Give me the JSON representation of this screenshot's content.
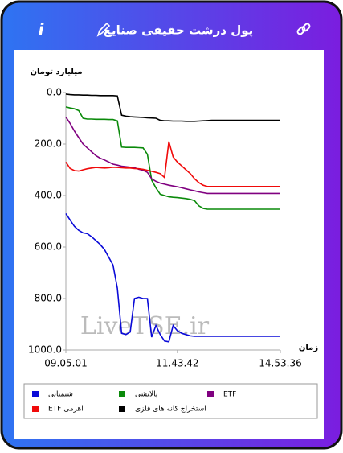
{
  "header": {
    "title": "پول درشت حقیقی صنایع",
    "info": "i"
  },
  "chart_data": {
    "type": "line",
    "y_label": "میلیارد تومان",
    "x_label": "زمان",
    "watermark": "LiveTSE.ir",
    "x": [
      0,
      1,
      2,
      3,
      4,
      5,
      6,
      7,
      8,
      9,
      10,
      11,
      12,
      13,
      14,
      15,
      16,
      17,
      18,
      19,
      20,
      21,
      22,
      23,
      24,
      25,
      26,
      27,
      28,
      29,
      30,
      31,
      32,
      33,
      34,
      35,
      36,
      37,
      38,
      39,
      40,
      41,
      42,
      43,
      44,
      45,
      46,
      47,
      48,
      49,
      50
    ],
    "xlim": [
      0,
      50
    ],
    "xticks": [
      {
        "value": 0,
        "label": "09.05.01"
      },
      {
        "value": 26,
        "label": "11.43.42"
      },
      {
        "value": 50,
        "label": "14.53.36"
      }
    ],
    "ylim": [
      1000,
      0
    ],
    "yticks": [
      {
        "value": 0,
        "label": "0.0"
      },
      {
        "value": 200,
        "label": "200.0"
      },
      {
        "value": 400,
        "label": "400.0"
      },
      {
        "value": 600,
        "label": "600.0"
      },
      {
        "value": 800,
        "label": "800.0"
      },
      {
        "value": 1000,
        "label": "1000.0"
      }
    ],
    "series": [
      {
        "name": "شیمیایی",
        "color": "#0a0ad8",
        "values": [
          470,
          495,
          520,
          535,
          545,
          548,
          560,
          575,
          590,
          610,
          640,
          670,
          760,
          935,
          940,
          930,
          800,
          795,
          800,
          800,
          950,
          905,
          940,
          965,
          968,
          905,
          925,
          935,
          940,
          945,
          947,
          947,
          947,
          947,
          947,
          947,
          947,
          947,
          947,
          947,
          947,
          947,
          947,
          947,
          947,
          947,
          947,
          947,
          947,
          947,
          947
        ]
      },
      {
        "name": "پالایشی",
        "color": "#0a8a0a",
        "values": [
          56,
          60,
          63,
          70,
          100,
          103,
          103,
          104,
          104,
          104,
          105,
          105,
          110,
          212,
          213,
          213,
          213,
          214,
          215,
          240,
          340,
          370,
          395,
          400,
          405,
          407,
          408,
          410,
          412,
          415,
          420,
          440,
          450,
          453,
          453,
          453,
          453,
          453,
          453,
          453,
          453,
          453,
          453,
          453,
          453,
          453,
          453,
          453,
          453,
          453,
          453
        ]
      },
      {
        "name": "ETF",
        "color": "#800080",
        "values": [
          95,
          120,
          150,
          175,
          200,
          215,
          230,
          245,
          255,
          262,
          270,
          278,
          282,
          286,
          288,
          290,
          292,
          298,
          302,
          310,
          335,
          345,
          352,
          356,
          360,
          363,
          366,
          370,
          374,
          378,
          382,
          386,
          389,
          392,
          392,
          392,
          392,
          392,
          392,
          392,
          392,
          392,
          392,
          392,
          392,
          392,
          392,
          392,
          392,
          392,
          392
        ]
      },
      {
        "name": "ETF اهرمی",
        "color": "#f00a0a",
        "values": [
          270,
          295,
          303,
          305,
          300,
          296,
          293,
          291,
          292,
          293,
          292,
          290,
          291,
          292,
          293,
          293,
          295,
          296,
          298,
          302,
          306,
          310,
          315,
          330,
          190,
          250,
          270,
          285,
          300,
          315,
          335,
          350,
          360,
          365,
          365,
          365,
          365,
          365,
          365,
          365,
          365,
          365,
          365,
          365,
          365,
          365,
          365,
          365,
          365,
          365,
          365
        ]
      },
      {
        "name": "استخراج کانه های فلزی",
        "color": "#000000",
        "values": [
          6,
          8,
          9,
          9,
          10,
          10,
          11,
          11,
          12,
          12,
          12,
          12,
          13,
          88,
          92,
          94,
          95,
          96,
          97,
          98,
          99,
          100,
          108,
          110,
          110,
          111,
          111,
          111,
          112,
          112,
          112,
          111,
          110,
          109,
          108,
          108,
          108,
          108,
          108,
          108,
          108,
          108,
          108,
          108,
          108,
          108,
          108,
          108,
          108,
          108,
          108
        ]
      }
    ]
  }
}
